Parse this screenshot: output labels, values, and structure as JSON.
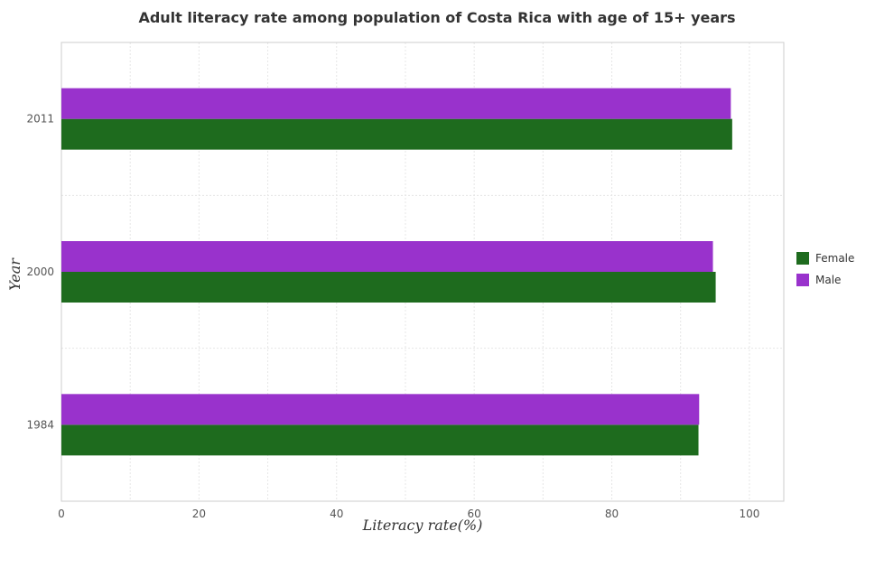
{
  "chart_data": {
    "type": "bar",
    "orientation": "horizontal",
    "title": "Adult literacy rate among population of Costa Rica with age of 15+ years",
    "xlabel": "Literacy rate(%)",
    "ylabel": "Year",
    "categories": [
      "1984",
      "2000",
      "2011"
    ],
    "series": [
      {
        "name": "Female",
        "values": [
          92.6,
          95.1,
          97.5
        ],
        "color": "#1e6b1e"
      },
      {
        "name": "Male",
        "values": [
          92.7,
          94.7,
          97.3
        ],
        "color": "#9932cc"
      }
    ],
    "xlim": [
      0,
      105
    ],
    "xticks": [
      0,
      20,
      40,
      60,
      80,
      100
    ],
    "grid": true,
    "legend_position": "right"
  }
}
